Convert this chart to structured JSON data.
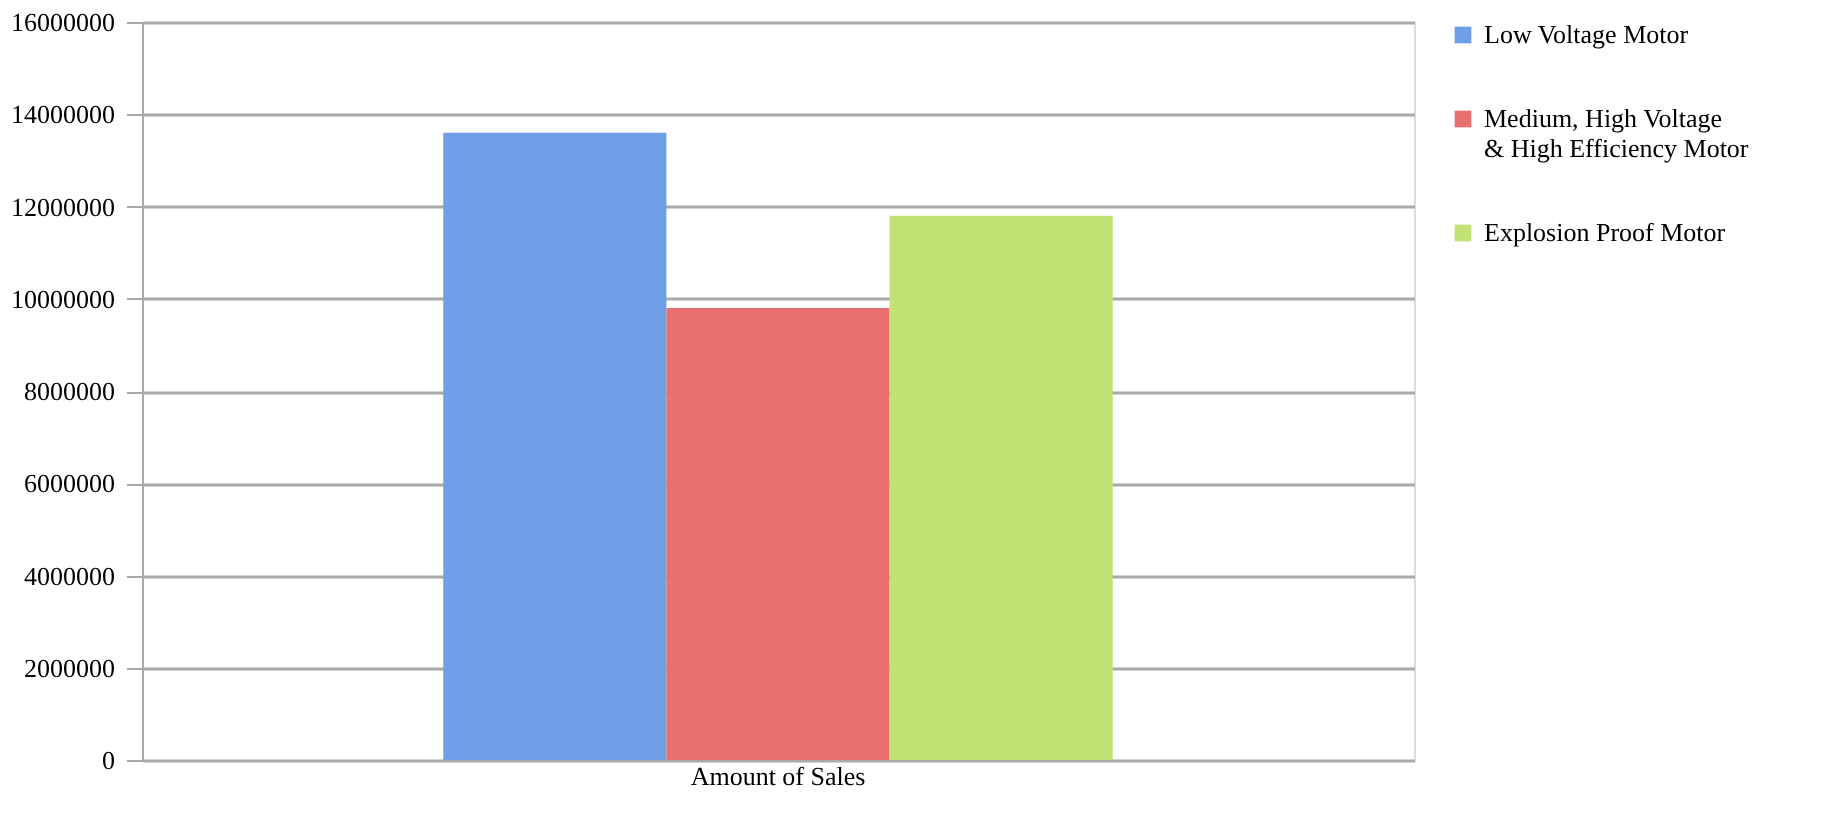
{
  "chart_data": {
    "type": "bar",
    "categories": [
      "Amount of Sales"
    ],
    "series": [
      {
        "name": "Low Voltage Motor",
        "color": "#6f9fe6",
        "values": [
          13600000
        ]
      },
      {
        "name": "Medium, High Voltage\n& High Efficiency Motor",
        "color": "#e9706e",
        "values": [
          9800000
        ]
      },
      {
        "name": "Explosion Proof Motor",
        "color": "#c3e276",
        "values": [
          11800000
        ]
      }
    ],
    "ylim": [
      0,
      16000000
    ],
    "yticks": [
      0,
      2000000,
      4000000,
      6000000,
      8000000,
      10000000,
      12000000,
      14000000,
      16000000
    ],
    "grid": "y",
    "legend": "right"
  }
}
